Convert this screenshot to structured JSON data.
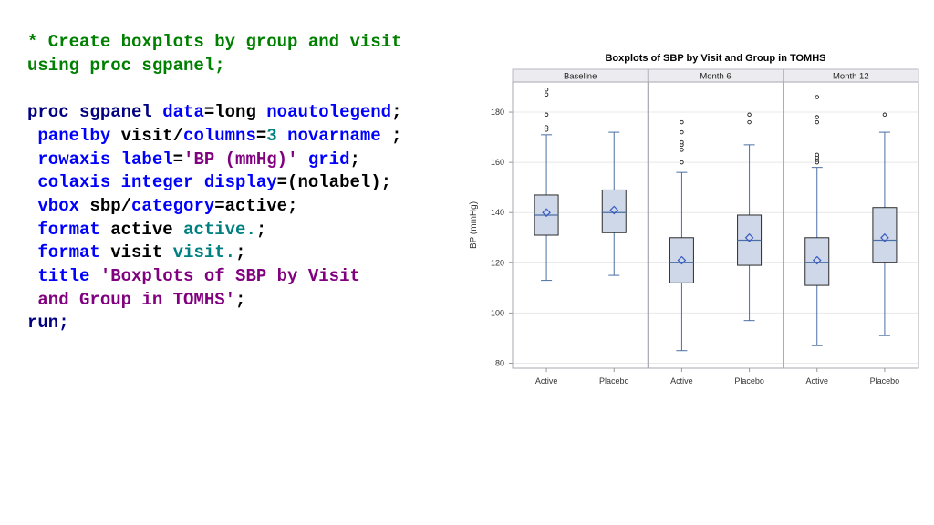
{
  "code": {
    "comment_line1": "* Create boxplots by group and visit",
    "comment_line2": "using proc sgpanel;",
    "l1": {
      "a": "proc sgpanel ",
      "b": "data",
      "c": "=long ",
      "d": "noautolegend",
      "e": ";"
    },
    "l2": {
      "a": " panelby",
      "b": " visit/",
      "c": "columns",
      "d": "=",
      "e": "3",
      "f": " novarname",
      "g": " ;"
    },
    "l3": {
      "a": " rowaxis",
      "b": " label",
      "c": "=",
      "d": "'BP (mmHg)'",
      "e": " grid",
      "f": ";"
    },
    "l4": {
      "a": " colaxis",
      "b": " integer",
      "c": " display",
      "d": "=(nolabel);"
    },
    "l5": {
      "a": " vbox",
      "b": " sbp/",
      "c": "category",
      "d": "=active;"
    },
    "l6": {
      "a": " format",
      "b": " active ",
      "c": "active.",
      "d": ";"
    },
    "l7": {
      "a": " format",
      "b": " visit ",
      "c": "visit.",
      "d": ";"
    },
    "l8": {
      "a": " title",
      "b": " 'Boxplots of SBP by Visit"
    },
    "l9": {
      "a": " and Group in TOMHS'",
      "b": ";"
    },
    "l10": {
      "a": "run;"
    }
  },
  "colors": {
    "box_fill": "#cfd8e8",
    "box_stroke": "#2b2b2b",
    "whisker": "#4a6fa5",
    "mean_marker": "#3b5cc4",
    "panel_header": "#ececf0",
    "grid": "#e8e8e8"
  },
  "chart_data": {
    "type": "boxplot",
    "title": "Boxplots of SBP by Visit and Group in TOMHS",
    "ylabel": "BP (mmHg)",
    "ylim": [
      78,
      192
    ],
    "yticks": [
      80,
      100,
      120,
      140,
      160,
      180
    ],
    "grid": true,
    "categories": [
      "Active",
      "Placebo"
    ],
    "panels": [
      {
        "name": "Baseline",
        "boxes": [
          {
            "category": "Active",
            "min": 113,
            "q1": 131,
            "median": 139,
            "q3": 147,
            "max": 171,
            "mean": 140,
            "outliers": [
              173,
              174,
              179,
              187,
              189
            ]
          },
          {
            "category": "Placebo",
            "min": 115,
            "q1": 132,
            "median": 140,
            "q3": 149,
            "max": 172,
            "mean": 141,
            "outliers": []
          }
        ]
      },
      {
        "name": "Month 6",
        "boxes": [
          {
            "category": "Active",
            "min": 85,
            "q1": 112,
            "median": 120,
            "q3": 130,
            "max": 156,
            "mean": 121,
            "outliers": [
              160,
              165,
              167,
              168,
              172,
              176
            ]
          },
          {
            "category": "Placebo",
            "min": 97,
            "q1": 119,
            "median": 129,
            "q3": 139,
            "max": 167,
            "mean": 130,
            "outliers": [
              176,
              179
            ]
          }
        ]
      },
      {
        "name": "Month 12",
        "boxes": [
          {
            "category": "Active",
            "min": 87,
            "q1": 111,
            "median": 120,
            "q3": 130,
            "max": 158,
            "mean": 121,
            "outliers": [
              160,
              161,
              162,
              163,
              176,
              178,
              186
            ]
          },
          {
            "category": "Placebo",
            "min": 91,
            "q1": 120,
            "median": 129,
            "q3": 142,
            "max": 172,
            "mean": 130,
            "outliers": [
              179
            ]
          }
        ]
      }
    ]
  }
}
